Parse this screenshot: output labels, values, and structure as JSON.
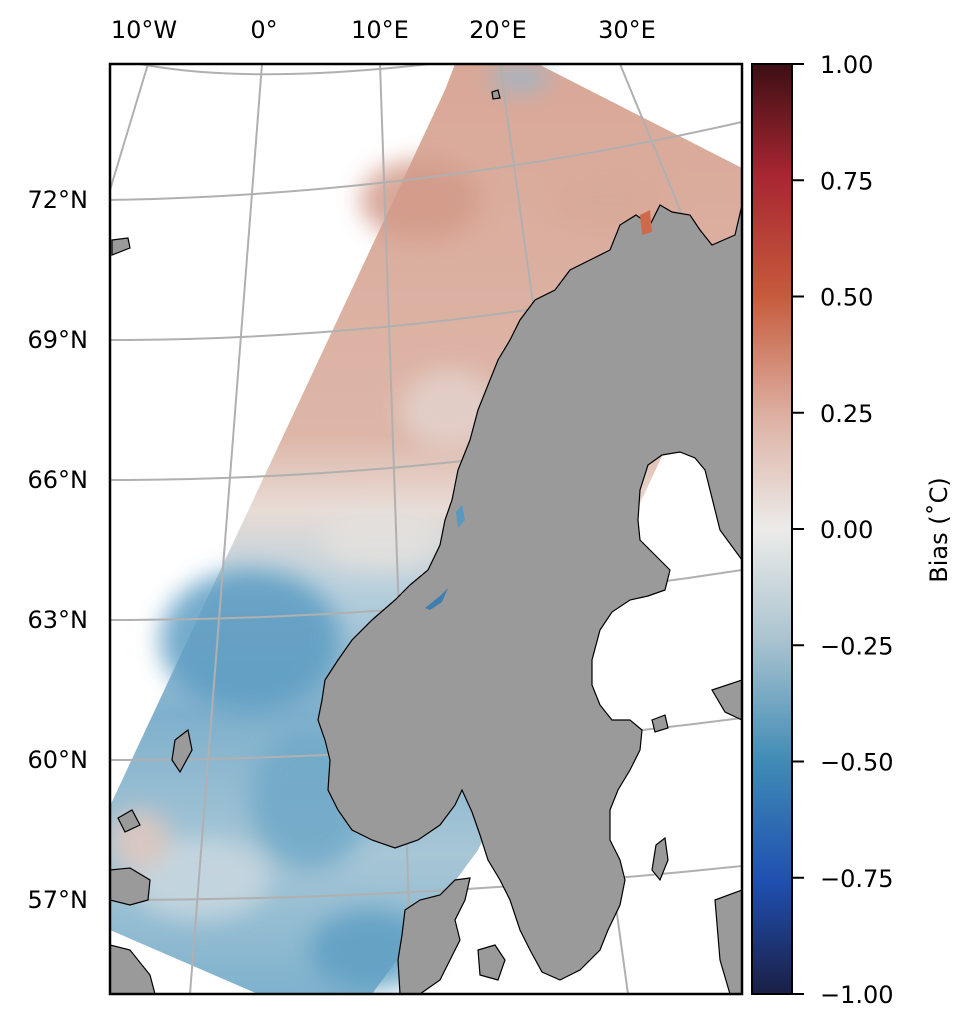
{
  "map": {
    "lon_labels": [
      "10°W",
      "0°",
      "10°E",
      "20°E",
      "30°E"
    ],
    "lat_labels": [
      "72°N",
      "69°N",
      "66°N",
      "63°N",
      "60°N",
      "57°N"
    ]
  },
  "colorbar": {
    "label": "Bias (˚C)",
    "ticks": [
      "1.00",
      "0.75",
      "0.50",
      "0.25",
      "0.00",
      "−0.25",
      "−0.50",
      "−0.75",
      "−1.00"
    ],
    "colors": {
      "max": "#3c0f14",
      "high": "#a82632",
      "mid_high": "#c65b3c",
      "low_pos": "#ddb1a3",
      "zero": "#ecebe9",
      "low_neg": "#a9c3cf",
      "mid_low": "#3f8bb5",
      "low": "#1f4fb0",
      "min": "#1a1f45"
    }
  },
  "colors": {
    "land": "#9a9a9a",
    "coast": "#000000",
    "grid": "#b0b0b0",
    "positive_bias": "#d7a08f",
    "negative_bias": "#6ea6c4"
  }
}
